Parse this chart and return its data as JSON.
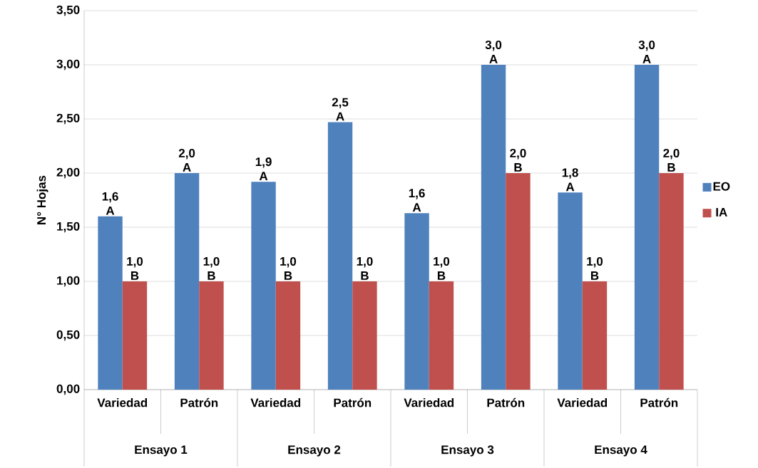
{
  "chart_data": {
    "type": "bar",
    "ylabel": "N° Hojas",
    "categories": [
      "Variedad",
      "Patrón",
      "Variedad",
      "Patrón",
      "Variedad",
      "Patrón",
      "Variedad",
      "Patrón"
    ],
    "series": [
      {
        "name": "EO",
        "color": "#4f81bd",
        "values": [
          1.6,
          2.0,
          1.92,
          2.47,
          1.63,
          3.0,
          1.82,
          3.0
        ],
        "value_labels": [
          "1,6 A",
          "2,0 A",
          "1,9 A",
          "2,5 A",
          "1,6 A",
          "3,0 A",
          "1,8 A",
          "3,0 A"
        ]
      },
      {
        "name": "IA",
        "color": "#c0504d",
        "values": [
          1.0,
          1.0,
          1.0,
          1.0,
          1.0,
          2.0,
          1.0,
          2.0
        ],
        "value_labels": [
          "1,0 B",
          "1,0 B",
          "1,0 B",
          "1,0 B",
          "1,0 B",
          "2,0 B",
          "1,0 B",
          "2,0 B"
        ]
      }
    ],
    "annotations": [
      "Ensayo 1",
      "Ensayo 2",
      "Ensayo 3",
      "Ensayo 4"
    ],
    "ylim": [
      0,
      3.5
    ],
    "yticks": [
      {
        "value": 0,
        "label": "0,00"
      },
      {
        "value": 0.5,
        "label": "0,50"
      },
      {
        "value": 1,
        "label": "1,00"
      },
      {
        "value": 1.5,
        "label": "1,50"
      },
      {
        "value": 2,
        "label": "2,00"
      },
      {
        "value": 2.5,
        "label": "2,50"
      },
      {
        "value": 3,
        "label": "3,00"
      },
      {
        "value": 3.5,
        "label": "3,50"
      }
    ],
    "grid": "y",
    "legend": "right"
  }
}
